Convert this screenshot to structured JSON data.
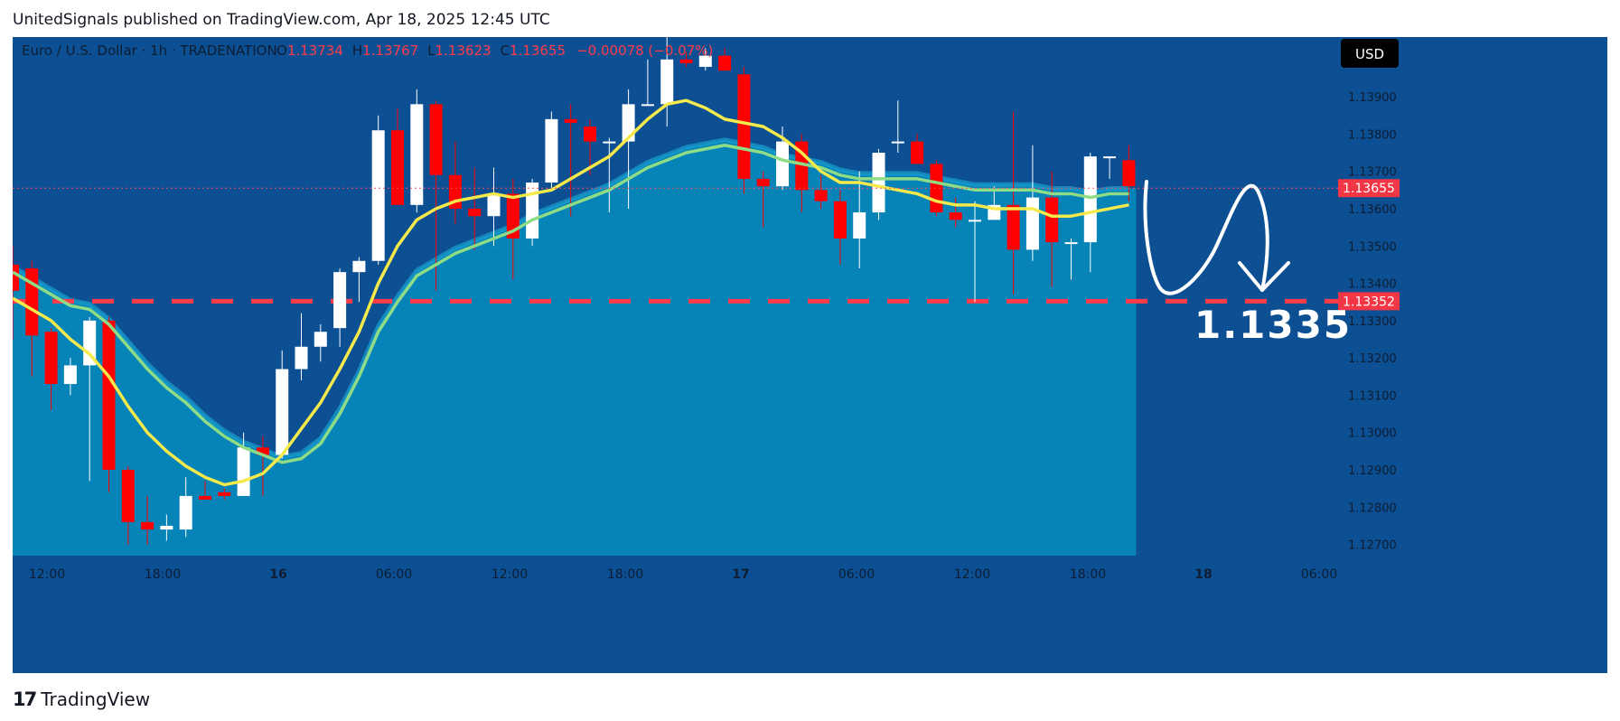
{
  "header": {
    "publisher_line": "UnitedSignals published on TradingView.com, Apr 18, 2025 12:45 UTC"
  },
  "legend": {
    "symbol": "Euro / U.S. Dollar · 1h · TRADENATION",
    "o_label": "O",
    "o_value": "1.13734",
    "h_label": "H",
    "h_value": "1.13767",
    "l_label": "L",
    "l_value": "1.13623",
    "c_label": "C",
    "c_value": "1.13655",
    "change": "−0.00078 (−0.07%)"
  },
  "currency_badge": "USD",
  "current_price_label": "1.13655",
  "target_price_label": "1.13352",
  "annotation_text": "1.1335",
  "footer": {
    "brand": "TradingView",
    "logo": "17"
  },
  "colors": {
    "background": "#0c4f92",
    "area_fill": "#0686b9",
    "bull": "#ffffff",
    "bear": "#ff0000",
    "ema_fast": "#f5e94c",
    "ema_slow": "#8fdc87",
    "target_line": "#ff3b4a",
    "price_badge": "#f23645"
  },
  "chart_data": {
    "type": "candlestick",
    "timeframe": "1h",
    "y_ticks": [
      "1.13900",
      "1.13800",
      "1.13700",
      "1.13600",
      "1.13500",
      "1.13400",
      "1.13300",
      "1.13200",
      "1.13100",
      "1.13000",
      "1.12900",
      "1.12800",
      "1.12700"
    ],
    "x_ticks": [
      "12:00",
      "18:00",
      "16",
      "06:00",
      "12:00",
      "18:00",
      "17",
      "06:00",
      "12:00",
      "18:00",
      "18",
      "06:00"
    ],
    "ylim": [
      1.1267,
      1.1406
    ],
    "current_price": 1.13655,
    "target_price": 1.13352,
    "candles": [
      {
        "o": 1.1345,
        "h": 1.135,
        "l": 1.1325,
        "c": 1.1338
      },
      {
        "o": 1.1344,
        "h": 1.1346,
        "l": 1.1315,
        "c": 1.1326
      },
      {
        "o": 1.1327,
        "h": 1.1328,
        "l": 1.1306,
        "c": 1.1313
      },
      {
        "o": 1.1313,
        "h": 1.132,
        "l": 1.131,
        "c": 1.1318
      },
      {
        "o": 1.1318,
        "h": 1.1331,
        "l": 1.1287,
        "c": 1.133
      },
      {
        "o": 1.133,
        "h": 1.1331,
        "l": 1.1284,
        "c": 1.129
      },
      {
        "o": 1.129,
        "h": 1.1291,
        "l": 1.127,
        "c": 1.1276
      },
      {
        "o": 1.1276,
        "h": 1.1283,
        "l": 1.127,
        "c": 1.1274
      },
      {
        "o": 1.1274,
        "h": 1.1278,
        "l": 1.1271,
        "c": 1.1275
      },
      {
        "o": 1.1274,
        "h": 1.1288,
        "l": 1.1272,
        "c": 1.1283
      },
      {
        "o": 1.1283,
        "h": 1.1287,
        "l": 1.1282,
        "c": 1.1282
      },
      {
        "o": 1.1284,
        "h": 1.1285,
        "l": 1.1282,
        "c": 1.1283
      },
      {
        "o": 1.1283,
        "h": 1.13,
        "l": 1.1283,
        "c": 1.1296
      },
      {
        "o": 1.1296,
        "h": 1.1299,
        "l": 1.1283,
        "c": 1.1294
      },
      {
        "o": 1.1294,
        "h": 1.1322,
        "l": 1.1293,
        "c": 1.1317
      },
      {
        "o": 1.1317,
        "h": 1.1332,
        "l": 1.1314,
        "c": 1.1323
      },
      {
        "o": 1.1323,
        "h": 1.1329,
        "l": 1.1319,
        "c": 1.1327
      },
      {
        "o": 1.1328,
        "h": 1.1344,
        "l": 1.1323,
        "c": 1.1343
      },
      {
        "o": 1.1343,
        "h": 1.1347,
        "l": 1.1335,
        "c": 1.1346
      },
      {
        "o": 1.1346,
        "h": 1.1385,
        "l": 1.1345,
        "c": 1.1381
      },
      {
        "o": 1.1381,
        "h": 1.1387,
        "l": 1.1361,
        "c": 1.1361
      },
      {
        "o": 1.1361,
        "h": 1.1392,
        "l": 1.1359,
        "c": 1.1388
      },
      {
        "o": 1.1388,
        "h": 1.1389,
        "l": 1.1338,
        "c": 1.1369
      },
      {
        "o": 1.1369,
        "h": 1.1378,
        "l": 1.1356,
        "c": 1.136
      },
      {
        "o": 1.136,
        "h": 1.1371,
        "l": 1.1349,
        "c": 1.1358
      },
      {
        "o": 1.1358,
        "h": 1.1371,
        "l": 1.135,
        "c": 1.1364
      },
      {
        "o": 1.1364,
        "h": 1.1368,
        "l": 1.1341,
        "c": 1.1352
      },
      {
        "o": 1.1352,
        "h": 1.1368,
        "l": 1.135,
        "c": 1.1367
      },
      {
        "o": 1.1367,
        "h": 1.1386,
        "l": 1.1365,
        "c": 1.1384
      },
      {
        "o": 1.1384,
        "h": 1.1388,
        "l": 1.1358,
        "c": 1.1383
      },
      {
        "o": 1.1382,
        "h": 1.1384,
        "l": 1.1369,
        "c": 1.1378
      },
      {
        "o": 1.1378,
        "h": 1.1379,
        "l": 1.1359,
        "c": 1.1378
      },
      {
        "o": 1.1378,
        "h": 1.1392,
        "l": 1.136,
        "c": 1.1388
      },
      {
        "o": 1.1388,
        "h": 1.14,
        "l": 1.1388,
        "c": 1.1388
      },
      {
        "o": 1.1388,
        "h": 1.1406,
        "l": 1.1382,
        "c": 1.14
      },
      {
        "o": 1.14,
        "h": 1.1402,
        "l": 1.1398,
        "c": 1.1399
      },
      {
        "o": 1.1398,
        "h": 1.1403,
        "l": 1.1397,
        "c": 1.1401
      },
      {
        "o": 1.1401,
        "h": 1.1403,
        "l": 1.1397,
        "c": 1.1397
      },
      {
        "o": 1.1396,
        "h": 1.1398,
        "l": 1.1364,
        "c": 1.1368
      },
      {
        "o": 1.1368,
        "h": 1.137,
        "l": 1.1355,
        "c": 1.1366
      },
      {
        "o": 1.1366,
        "h": 1.1382,
        "l": 1.1365,
        "c": 1.1378
      },
      {
        "o": 1.1378,
        "h": 1.138,
        "l": 1.1359,
        "c": 1.1365
      },
      {
        "o": 1.1365,
        "h": 1.1369,
        "l": 1.136,
        "c": 1.1362
      },
      {
        "o": 1.1362,
        "h": 1.1365,
        "l": 1.1345,
        "c": 1.1352
      },
      {
        "o": 1.1352,
        "h": 1.137,
        "l": 1.1344,
        "c": 1.1359
      },
      {
        "o": 1.1359,
        "h": 1.1376,
        "l": 1.1357,
        "c": 1.1375
      },
      {
        "o": 1.1378,
        "h": 1.1389,
        "l": 1.1375,
        "c": 1.1378
      },
      {
        "o": 1.1378,
        "h": 1.138,
        "l": 1.1372,
        "c": 1.1372
      },
      {
        "o": 1.1372,
        "h": 1.1373,
        "l": 1.1358,
        "c": 1.1359
      },
      {
        "o": 1.1359,
        "h": 1.1363,
        "l": 1.1355,
        "c": 1.1357
      },
      {
        "o": 1.1357,
        "h": 1.1362,
        "l": 1.1335,
        "c": 1.1357
      },
      {
        "o": 1.1357,
        "h": 1.1366,
        "l": 1.1357,
        "c": 1.1361
      },
      {
        "o": 1.1361,
        "h": 1.1386,
        "l": 1.1337,
        "c": 1.1349
      },
      {
        "o": 1.1349,
        "h": 1.1377,
        "l": 1.1346,
        "c": 1.1363
      },
      {
        "o": 1.1363,
        "h": 1.137,
        "l": 1.1339,
        "c": 1.1351
      },
      {
        "o": 1.1351,
        "h": 1.1352,
        "l": 1.1341,
        "c": 1.1351
      },
      {
        "o": 1.1351,
        "h": 1.1375,
        "l": 1.1343,
        "c": 1.1374
      },
      {
        "o": 1.1374,
        "h": 1.1374,
        "l": 1.1368,
        "c": 1.1374
      },
      {
        "o": 1.1373,
        "h": 1.1377,
        "l": 1.1362,
        "c": 1.1366
      }
    ],
    "ema_fast": [
      1.1336,
      1.1333,
      1.133,
      1.1325,
      1.1321,
      1.1315,
      1.1307,
      1.13,
      1.1295,
      1.1291,
      1.1288,
      1.1286,
      1.1287,
      1.1289,
      1.1294,
      1.1301,
      1.1308,
      1.1317,
      1.1327,
      1.134,
      1.135,
      1.1357,
      1.136,
      1.1362,
      1.1363,
      1.1364,
      1.1363,
      1.1364,
      1.1365,
      1.1368,
      1.1371,
      1.1374,
      1.1379,
      1.1384,
      1.1388,
      1.1389,
      1.1387,
      1.1384,
      1.1383,
      1.1382,
      1.1379,
      1.1375,
      1.137,
      1.1367,
      1.1367,
      1.1366,
      1.1365,
      1.1364,
      1.1362,
      1.1361,
      1.1361,
      1.136,
      1.136,
      1.136,
      1.1358,
      1.1358,
      1.1359,
      1.136,
      1.1361
    ],
    "ema_slow": [
      1.1343,
      1.134,
      1.1337,
      1.1334,
      1.1333,
      1.1329,
      1.1323,
      1.1317,
      1.1312,
      1.1308,
      1.1303,
      1.1299,
      1.1296,
      1.1294,
      1.1292,
      1.1293,
      1.1297,
      1.1305,
      1.1315,
      1.1327,
      1.1335,
      1.1342,
      1.1345,
      1.1348,
      1.135,
      1.1352,
      1.1354,
      1.1357,
      1.1359,
      1.1361,
      1.1363,
      1.1365,
      1.1368,
      1.1371,
      1.1373,
      1.1375,
      1.1376,
      1.1377,
      1.1376,
      1.1375,
      1.1373,
      1.1372,
      1.1371,
      1.1369,
      1.1368,
      1.1368,
      1.1368,
      1.1368,
      1.1367,
      1.1366,
      1.1365,
      1.1365,
      1.1365,
      1.1365,
      1.1364,
      1.1364,
      1.1363,
      1.1364,
      1.1364
    ]
  }
}
